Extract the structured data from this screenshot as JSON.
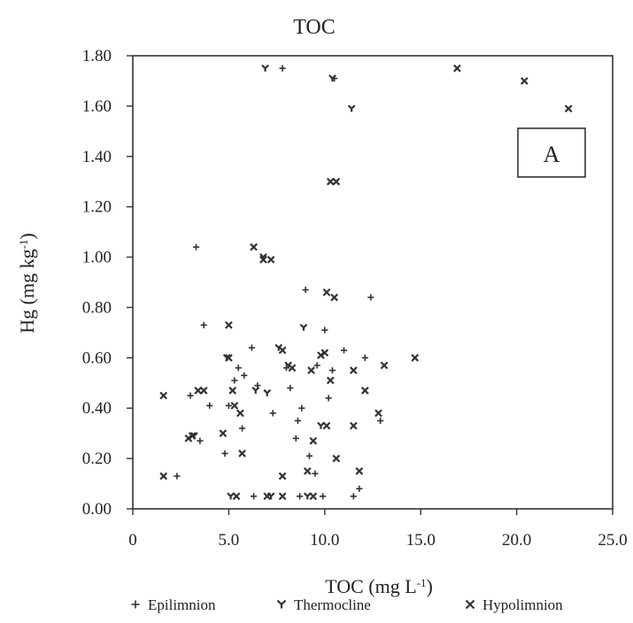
{
  "chart_data": {
    "type": "scatter",
    "title": "TOC",
    "xlabel": "TOC (mg L",
    "xlabel_sup": "-1",
    "xlabel_end": ")",
    "ylabel": "Hg (mg kg",
    "ylabel_sup": "-1",
    "ylabel_end": ")",
    "xlim": [
      0,
      25
    ],
    "ylim": [
      0,
      1.8
    ],
    "x_ticks": [
      0,
      5,
      10,
      15,
      20,
      25
    ],
    "x_tick_labels": [
      "0",
      "5.0",
      "10.0",
      "15.0",
      "20.0",
      "25.0"
    ],
    "y_ticks": [
      0,
      0.2,
      0.4,
      0.6,
      0.8,
      1.0,
      1.2,
      1.4,
      1.6,
      1.8
    ],
    "y_tick_labels": [
      "0.00",
      "0.20",
      "0.40",
      "0.60",
      "0.80",
      "1.00",
      "1.20",
      "1.40",
      "1.60",
      "1.80"
    ],
    "grid": false,
    "legend_position": "bottom",
    "annotation": "A",
    "series": [
      {
        "name": "Epilimnion",
        "marker": "+",
        "points": [
          [
            3.3,
            1.04
          ],
          [
            3.7,
            0.73
          ],
          [
            2.3,
            0.13
          ],
          [
            3.0,
            0.45
          ],
          [
            3.5,
            0.27
          ],
          [
            4.0,
            0.41
          ],
          [
            4.8,
            0.22
          ],
          [
            5.0,
            0.41
          ],
          [
            5.3,
            0.51
          ],
          [
            5.5,
            0.56
          ],
          [
            5.7,
            0.32
          ],
          [
            5.8,
            0.53
          ],
          [
            6.2,
            0.64
          ],
          [
            6.5,
            0.49
          ],
          [
            7.3,
            0.38
          ],
          [
            7.8,
            1.75
          ],
          [
            8.0,
            0.56
          ],
          [
            8.2,
            0.48
          ],
          [
            8.5,
            0.28
          ],
          [
            8.6,
            0.35
          ],
          [
            8.8,
            0.4
          ],
          [
            9.0,
            0.87
          ],
          [
            9.2,
            0.21
          ],
          [
            9.5,
            0.14
          ],
          [
            9.6,
            0.57
          ],
          [
            10.0,
            0.71
          ],
          [
            10.2,
            0.44
          ],
          [
            10.4,
            0.55
          ],
          [
            10.5,
            1.71
          ],
          [
            11.0,
            0.63
          ],
          [
            11.5,
            0.05
          ],
          [
            11.8,
            0.08
          ],
          [
            12.1,
            0.6
          ],
          [
            12.4,
            0.84
          ],
          [
            12.9,
            0.35
          ],
          [
            8.7,
            0.05
          ],
          [
            9.9,
            0.05
          ],
          [
            6.3,
            0.05
          ]
        ]
      },
      {
        "name": "Thermocline",
        "marker": "Y",
        "points": [
          [
            6.9,
            1.75
          ],
          [
            4.9,
            0.6
          ],
          [
            6.4,
            0.47
          ],
          [
            7.0,
            0.46
          ],
          [
            7.6,
            0.64
          ],
          [
            8.9,
            0.72
          ],
          [
            9.8,
            0.33
          ],
          [
            11.4,
            1.59
          ],
          [
            10.4,
            1.71
          ],
          [
            6.8,
            1.0
          ],
          [
            8.1,
            0.57
          ],
          [
            5.1,
            0.05
          ],
          [
            7.2,
            0.05
          ],
          [
            9.1,
            0.05
          ],
          [
            3.2,
            0.29
          ]
        ]
      },
      {
        "name": "Hypolimnion",
        "marker": "X",
        "points": [
          [
            1.6,
            0.45
          ],
          [
            1.6,
            0.13
          ],
          [
            2.9,
            0.28
          ],
          [
            3.1,
            0.29
          ],
          [
            3.4,
            0.47
          ],
          [
            3.7,
            0.47
          ],
          [
            4.7,
            0.3
          ],
          [
            5.0,
            0.73
          ],
          [
            5.0,
            0.6
          ],
          [
            5.2,
            0.47
          ],
          [
            5.3,
            0.41
          ],
          [
            5.6,
            0.38
          ],
          [
            5.7,
            0.22
          ],
          [
            6.3,
            1.04
          ],
          [
            6.8,
            0.99
          ],
          [
            7.2,
            0.99
          ],
          [
            7.8,
            0.63
          ],
          [
            7.8,
            0.13
          ],
          [
            8.3,
            0.56
          ],
          [
            9.1,
            0.15
          ],
          [
            9.3,
            0.55
          ],
          [
            9.4,
            0.27
          ],
          [
            9.8,
            0.61
          ],
          [
            10.0,
            0.62
          ],
          [
            10.1,
            0.86
          ],
          [
            10.3,
            0.51
          ],
          [
            10.3,
            1.3
          ],
          [
            10.5,
            0.84
          ],
          [
            10.6,
            1.3
          ],
          [
            10.6,
            0.2
          ],
          [
            11.5,
            0.55
          ],
          [
            11.5,
            0.33
          ],
          [
            11.8,
            0.15
          ],
          [
            12.1,
            0.47
          ],
          [
            12.8,
            0.38
          ],
          [
            13.1,
            0.57
          ],
          [
            14.7,
            0.6
          ],
          [
            16.9,
            1.75
          ],
          [
            20.4,
            1.7
          ],
          [
            22.7,
            1.59
          ],
          [
            5.4,
            0.05
          ],
          [
            7.0,
            0.05
          ],
          [
            7.8,
            0.05
          ],
          [
            9.4,
            0.05
          ],
          [
            10.1,
            0.33
          ]
        ]
      }
    ]
  }
}
